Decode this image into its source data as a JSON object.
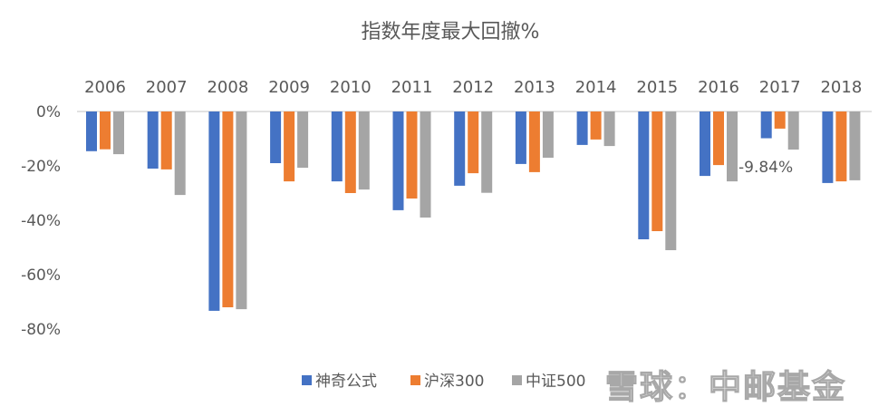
{
  "chart_data": {
    "type": "bar",
    "title": "指数年度最大回撤%",
    "categories": [
      "2006",
      "2007",
      "2008",
      "2009",
      "2010",
      "2011",
      "2012",
      "2013",
      "2014",
      "2015",
      "2016",
      "2017",
      "2018"
    ],
    "series": [
      {
        "name": "神奇公式",
        "color": "#4472C4",
        "values": [
          -14.6,
          -21.0,
          -73.3,
          -19.0,
          -25.7,
          -36.3,
          -27.3,
          -19.3,
          -12.3,
          -47.0,
          -23.7,
          -9.84,
          -26.3
        ]
      },
      {
        "name": "沪深300",
        "color": "#ED7D31",
        "values": [
          -13.9,
          -21.3,
          -72.0,
          -25.7,
          -30.0,
          -32.0,
          -22.7,
          -22.3,
          -10.3,
          -44.0,
          -19.7,
          -6.3,
          -25.7
        ]
      },
      {
        "name": "中证500",
        "color": "#A5A5A5",
        "values": [
          -15.7,
          -30.7,
          -72.7,
          -20.7,
          -28.7,
          -39.0,
          -29.9,
          -17.0,
          -12.7,
          -51.0,
          -25.7,
          -14.0,
          -25.3
        ]
      }
    ],
    "yticks": [
      "0%",
      "-20%",
      "-40%",
      "-60%",
      "-80%"
    ],
    "ylim": [
      -80,
      0
    ],
    "annotation": "-9.84%",
    "legend": "bottom-right",
    "grid": false
  },
  "watermark": "雪球：中邮基金"
}
